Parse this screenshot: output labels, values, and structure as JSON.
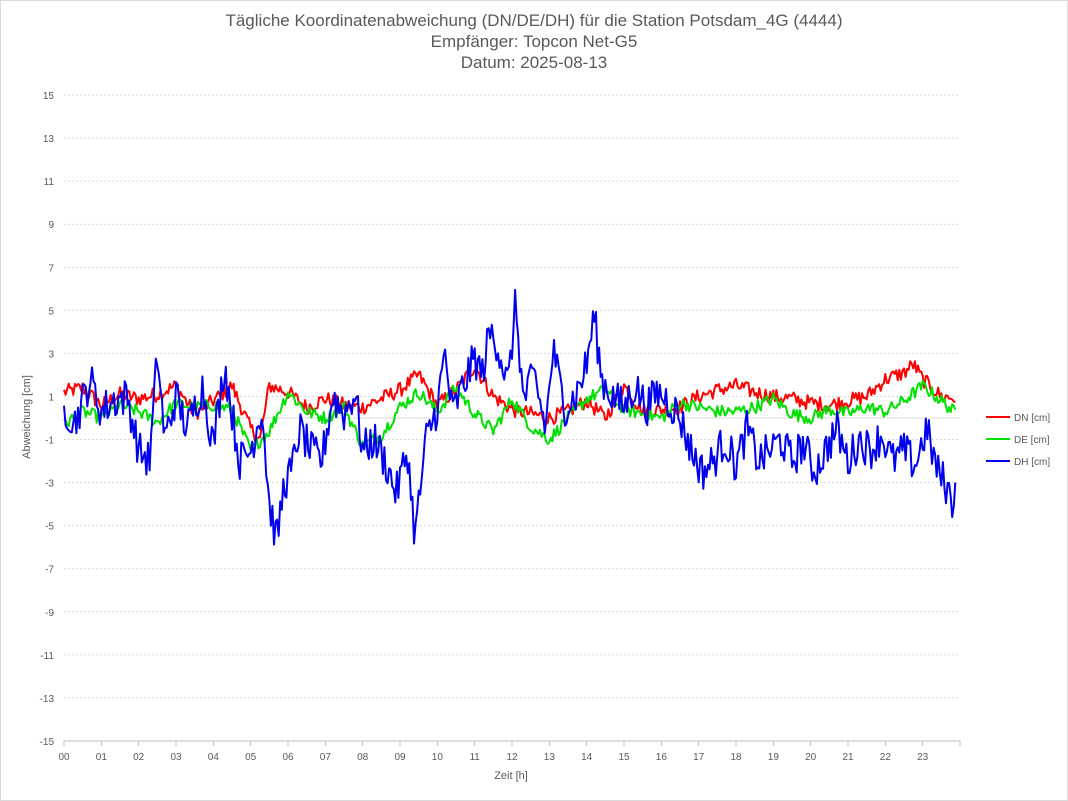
{
  "chart_data": {
    "type": "line",
    "title": "Tägliche Koordinatenabweichung (DN/DE/DH) für die Station Potsdam_4G (4444)",
    "subtitle_receiver": "Empfänger: Topcon Net-G5",
    "subtitle_date": "Datum: 2025-08-13",
    "xlabel": "Zeit [h]",
    "ylabel": "Abweichung [cm]",
    "x_ticks": [
      "00",
      "01",
      "02",
      "03",
      "04",
      "05",
      "06",
      "07",
      "08",
      "09",
      "10",
      "11",
      "12",
      "13",
      "14",
      "15",
      "16",
      "17",
      "18",
      "19",
      "20",
      "21",
      "22",
      "23"
    ],
    "y_ticks": [
      15,
      13,
      11,
      9,
      7,
      5,
      3,
      1,
      -1,
      -3,
      -5,
      -7,
      -9,
      -11,
      -13,
      -15
    ],
    "ylim": [
      -15,
      15
    ],
    "xlim": [
      0,
      24
    ],
    "grid": true,
    "legend_position": "right",
    "series": [
      {
        "name": "DN [cm]",
        "color": "#ff0000",
        "x": [
          0,
          0.5,
          1,
          1.5,
          2,
          2.5,
          3,
          3.5,
          4,
          4.5,
          5,
          5.25,
          5.5,
          6,
          6.5,
          7,
          7.5,
          8,
          8.5,
          9,
          9.5,
          10,
          10.5,
          11,
          11.5,
          12,
          12.5,
          13,
          13.5,
          14,
          14.5,
          15,
          15.5,
          16,
          16.5,
          17,
          17.5,
          18,
          18.5,
          19,
          19.5,
          20,
          20.5,
          21,
          21.5,
          22,
          22.5,
          22.75,
          23,
          23.5,
          23.9
        ],
        "y": [
          1.2,
          1.4,
          0.6,
          1.1,
          0.9,
          1.1,
          1.5,
          0.2,
          0.8,
          1.5,
          -0.5,
          -1.0,
          1.5,
          1.2,
          0.5,
          0.9,
          0.6,
          0.5,
          0.9,
          1.3,
          2.0,
          0.6,
          1.3,
          2.4,
          1.0,
          0.4,
          0.2,
          0.0,
          0.3,
          0.8,
          0.0,
          1.5,
          0.3,
          0.4,
          0.5,
          1.0,
          1.3,
          1.5,
          1.2,
          1.0,
          0.9,
          0.7,
          0.6,
          0.8,
          1.0,
          1.8,
          2.1,
          2.5,
          1.8,
          1.0,
          0.9
        ]
      },
      {
        "name": "DE [cm]",
        "color": "#00e000",
        "x": [
          0,
          0.5,
          1,
          1.5,
          2,
          2.5,
          3,
          3.5,
          4,
          4.5,
          5,
          5.5,
          6,
          6.5,
          7,
          7.5,
          8,
          8.5,
          9,
          9.5,
          10,
          10.5,
          11,
          11.5,
          12,
          12.5,
          13,
          13.5,
          14,
          14.5,
          15,
          15.5,
          16,
          16.5,
          17,
          17.5,
          18,
          18.5,
          19,
          19.5,
          20,
          20.5,
          21,
          21.5,
          22,
          22.5,
          23,
          23.5,
          23.9
        ],
        "y": [
          -0.3,
          0.3,
          0.0,
          0.6,
          0.3,
          -0.2,
          0.7,
          0.5,
          0.6,
          0.4,
          -1.5,
          -0.6,
          1.2,
          0.3,
          0.0,
          0.5,
          -1.3,
          -0.8,
          0.5,
          1.2,
          0.3,
          1.4,
          0.2,
          -0.6,
          0.9,
          -0.4,
          -1.0,
          0.0,
          0.9,
          1.3,
          0.4,
          0.2,
          0.0,
          0.7,
          0.5,
          0.3,
          0.3,
          0.5,
          0.9,
          0.2,
          0.0,
          0.4,
          0.2,
          0.5,
          0.3,
          0.8,
          1.5,
          0.8,
          0.2
        ]
      },
      {
        "name": "DH [cm]",
        "color": "#0000ee",
        "x": [
          0,
          0.3,
          0.7,
          1,
          1.3,
          1.7,
          2,
          2.3,
          2.5,
          2.7,
          3,
          3.3,
          3.7,
          4,
          4.3,
          4.7,
          5,
          5.3,
          5.5,
          5.7,
          5.9,
          6.1,
          6.3,
          6.6,
          6.9,
          7.2,
          7.5,
          7.8,
          8,
          8.3,
          8.6,
          8.9,
          9.2,
          9.4,
          9.7,
          10,
          10.2,
          10.4,
          10.7,
          11,
          11.2,
          11.4,
          11.6,
          11.9,
          12.1,
          12.3,
          12.6,
          12.9,
          13.1,
          13.4,
          13.7,
          14,
          14.2,
          14.4,
          14.7,
          15,
          15.3,
          15.6,
          15.9,
          16.2,
          16.5,
          16.8,
          17.1,
          17.4,
          17.7,
          18,
          18.3,
          18.6,
          18.9,
          19.2,
          19.5,
          19.8,
          20.1,
          20.4,
          20.7,
          21,
          21.3,
          21.6,
          21.9,
          22.2,
          22.5,
          22.8,
          23.1,
          23.4,
          23.6,
          23.8,
          23.9
        ],
        "y": [
          0.5,
          -0.2,
          1.8,
          0.3,
          0.8,
          1.0,
          -1.5,
          -2.0,
          3.0,
          -1.0,
          1.0,
          -0.5,
          1.5,
          -1.2,
          2.5,
          -2.0,
          -1.5,
          0.5,
          -4.0,
          -5.7,
          -3.0,
          -2.5,
          -0.5,
          -1.5,
          -2.0,
          1.0,
          0.2,
          1.2,
          -1.5,
          -1.0,
          -2.0,
          -3.5,
          -1.5,
          -5.5,
          -1.0,
          0.5,
          3.0,
          0.2,
          1.5,
          2.8,
          2.0,
          4.0,
          3.5,
          1.5,
          5.4,
          0.8,
          2.0,
          -0.5,
          3.2,
          0.5,
          1.0,
          2.5,
          4.8,
          1.8,
          1.0,
          0.5,
          1.5,
          0.5,
          1.2,
          0.8,
          0.0,
          -1.5,
          -2.5,
          -2.0,
          -1.0,
          -2.2,
          -0.5,
          -2.0,
          -1.5,
          -1.0,
          -2.0,
          -1.2,
          -2.5,
          -1.5,
          -0.5,
          -2.0,
          -1.0,
          -1.5,
          -0.8,
          -2.0,
          -1.5,
          -2.2,
          -0.5,
          -2.5,
          -3.0,
          -4.0,
          -2.2
        ]
      }
    ]
  }
}
